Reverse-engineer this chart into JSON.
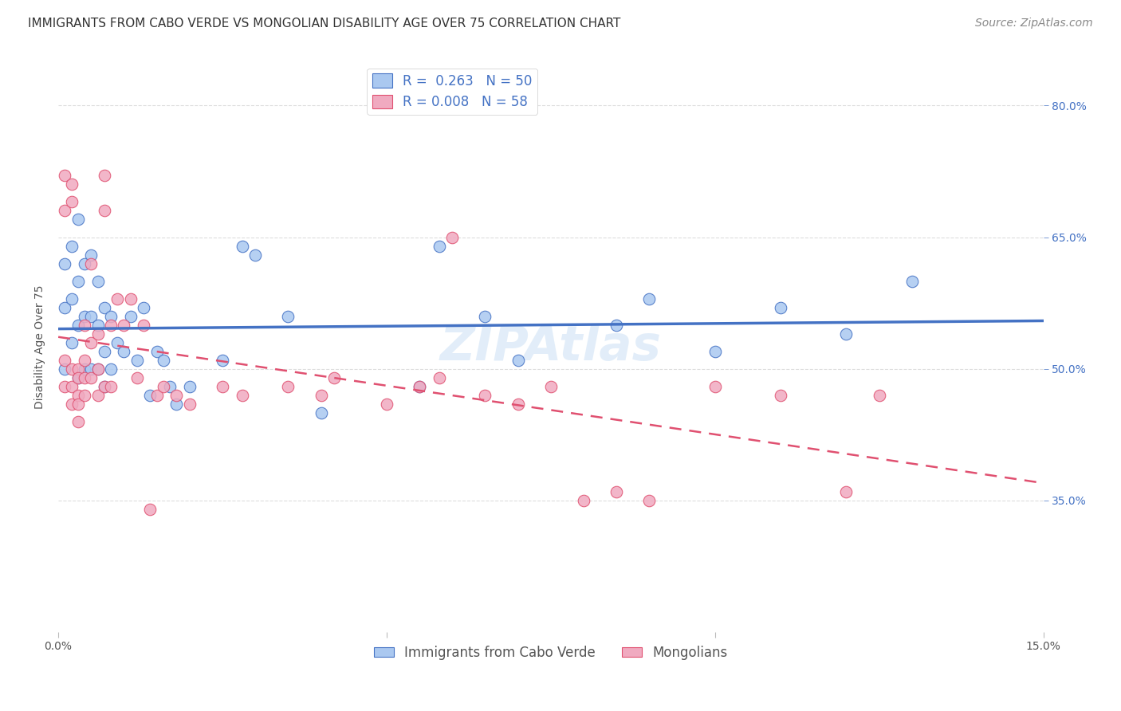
{
  "title": "IMMIGRANTS FROM CABO VERDE VS MONGOLIAN DISABILITY AGE OVER 75 CORRELATION CHART",
  "source": "Source: ZipAtlas.com",
  "ylabel": "Disability Age Over 75",
  "xmin": 0.0,
  "xmax": 0.15,
  "ymin": 0.2,
  "ymax": 0.85,
  "grid_color": "#dddddd",
  "cabo_verde_color": "#aac8f0",
  "mongolian_color": "#f0aac0",
  "cabo_verde_line_color": "#4472c4",
  "mongolian_line_color": "#e05070",
  "cabo_verde_x": [
    0.001,
    0.001,
    0.001,
    0.002,
    0.002,
    0.002,
    0.003,
    0.003,
    0.003,
    0.003,
    0.004,
    0.004,
    0.004,
    0.005,
    0.005,
    0.005,
    0.006,
    0.006,
    0.006,
    0.007,
    0.007,
    0.007,
    0.008,
    0.008,
    0.009,
    0.01,
    0.011,
    0.012,
    0.013,
    0.014,
    0.015,
    0.016,
    0.017,
    0.018,
    0.02,
    0.025,
    0.028,
    0.03,
    0.035,
    0.04,
    0.055,
    0.058,
    0.065,
    0.07,
    0.085,
    0.09,
    0.1,
    0.11,
    0.12,
    0.13
  ],
  "cabo_verde_y": [
    0.62,
    0.57,
    0.5,
    0.64,
    0.58,
    0.53,
    0.67,
    0.6,
    0.55,
    0.49,
    0.62,
    0.56,
    0.5,
    0.63,
    0.56,
    0.5,
    0.6,
    0.55,
    0.5,
    0.57,
    0.52,
    0.48,
    0.56,
    0.5,
    0.53,
    0.52,
    0.56,
    0.51,
    0.57,
    0.47,
    0.52,
    0.51,
    0.48,
    0.46,
    0.48,
    0.51,
    0.64,
    0.63,
    0.56,
    0.45,
    0.48,
    0.64,
    0.56,
    0.51,
    0.55,
    0.58,
    0.52,
    0.57,
    0.54,
    0.6
  ],
  "mongolian_x": [
    0.001,
    0.001,
    0.001,
    0.001,
    0.002,
    0.002,
    0.002,
    0.002,
    0.002,
    0.003,
    0.003,
    0.003,
    0.003,
    0.003,
    0.004,
    0.004,
    0.004,
    0.004,
    0.005,
    0.005,
    0.005,
    0.006,
    0.006,
    0.006,
    0.007,
    0.007,
    0.007,
    0.008,
    0.008,
    0.009,
    0.01,
    0.011,
    0.012,
    0.013,
    0.014,
    0.015,
    0.016,
    0.018,
    0.02,
    0.025,
    0.028,
    0.035,
    0.04,
    0.042,
    0.05,
    0.055,
    0.058,
    0.06,
    0.065,
    0.07,
    0.075,
    0.08,
    0.085,
    0.09,
    0.1,
    0.11,
    0.12,
    0.125
  ],
  "mongolian_y": [
    0.72,
    0.68,
    0.51,
    0.48,
    0.71,
    0.69,
    0.5,
    0.48,
    0.46,
    0.5,
    0.49,
    0.47,
    0.46,
    0.44,
    0.55,
    0.51,
    0.49,
    0.47,
    0.62,
    0.53,
    0.49,
    0.54,
    0.5,
    0.47,
    0.72,
    0.68,
    0.48,
    0.55,
    0.48,
    0.58,
    0.55,
    0.58,
    0.49,
    0.55,
    0.34,
    0.47,
    0.48,
    0.47,
    0.46,
    0.48,
    0.47,
    0.48,
    0.47,
    0.49,
    0.46,
    0.48,
    0.49,
    0.65,
    0.47,
    0.46,
    0.48,
    0.35,
    0.36,
    0.35,
    0.48,
    0.47,
    0.36,
    0.47
  ],
  "background_color": "#ffffff",
  "title_fontsize": 11,
  "axis_label_fontsize": 10,
  "tick_fontsize": 10,
  "legend_fontsize": 12,
  "source_fontsize": 10
}
